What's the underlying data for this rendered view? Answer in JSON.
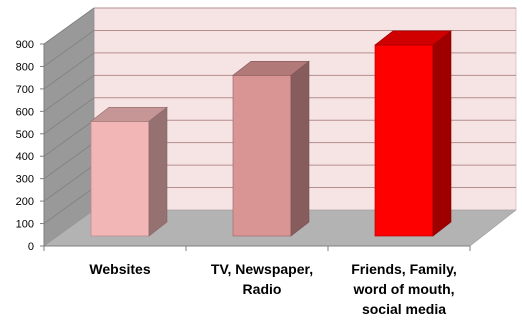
{
  "chart_data": {
    "type": "bar",
    "categories": [
      [
        "Websites"
      ],
      [
        "TV, Newspaper,",
        "Radio"
      ],
      [
        "Friends, Family,",
        "word of mouth,",
        "social media"
      ]
    ],
    "values": [
      520,
      725,
      860
    ],
    "bar_colors": [
      "#f2b6b6",
      "#d99494",
      "#ff0000"
    ],
    "ylim": [
      0,
      900
    ],
    "yticks": [
      0,
      100,
      200,
      300,
      400,
      500,
      600,
      700,
      800,
      900
    ],
    "grid": true,
    "style": "3d",
    "wall_color": "#f6e4e4",
    "floor_color": "#b3b3b3",
    "side_wall_color": "#999999"
  }
}
